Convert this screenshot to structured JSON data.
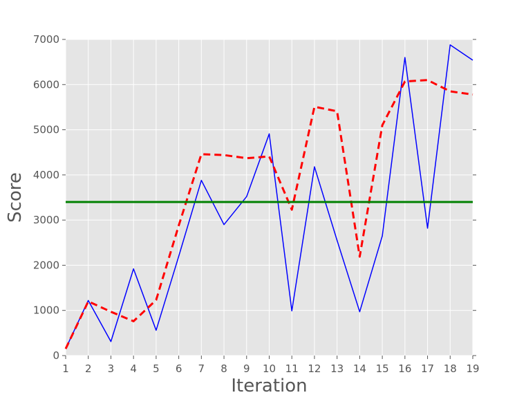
{
  "chart_data": {
    "type": "line",
    "title": "",
    "xlabel": "Iteration",
    "ylabel": "Score",
    "xlim": [
      1,
      19
    ],
    "ylim": [
      0,
      7000
    ],
    "x": [
      1,
      2,
      3,
      4,
      5,
      6,
      7,
      8,
      9,
      10,
      11,
      12,
      13,
      14,
      15,
      16,
      17,
      18,
      19
    ],
    "xticks": [
      1,
      2,
      3,
      4,
      5,
      6,
      7,
      8,
      9,
      10,
      11,
      12,
      13,
      14,
      15,
      16,
      17,
      18,
      19
    ],
    "yticks": [
      0,
      1000,
      2000,
      3000,
      4000,
      5000,
      6000,
      7000
    ],
    "grid": true,
    "legend": "none",
    "background_color": "#e5e5e5",
    "series": [
      {
        "style": "solid",
        "color": "#0000ff",
        "values": [
          150,
          1220,
          310,
          1920,
          560,
          2200,
          3880,
          2900,
          3520,
          4910,
          990,
          4180,
          2550,
          970,
          2650,
          6600,
          2820,
          6880,
          6540
        ]
      },
      {
        "style": "dashed",
        "color": "#ff0000",
        "values": [
          150,
          1200,
          970,
          760,
          1230,
          2880,
          4460,
          4440,
          4370,
          4410,
          3230,
          5510,
          5410,
          2190,
          5100,
          6070,
          6100,
          5850,
          5780
        ]
      },
      {
        "style": "solid",
        "color": "#008000",
        "values": [
          3400,
          3400,
          3400,
          3400,
          3400,
          3400,
          3400,
          3400,
          3400,
          3400,
          3400,
          3400,
          3400,
          3400,
          3400,
          3400,
          3400,
          3400,
          3400
        ]
      }
    ]
  }
}
